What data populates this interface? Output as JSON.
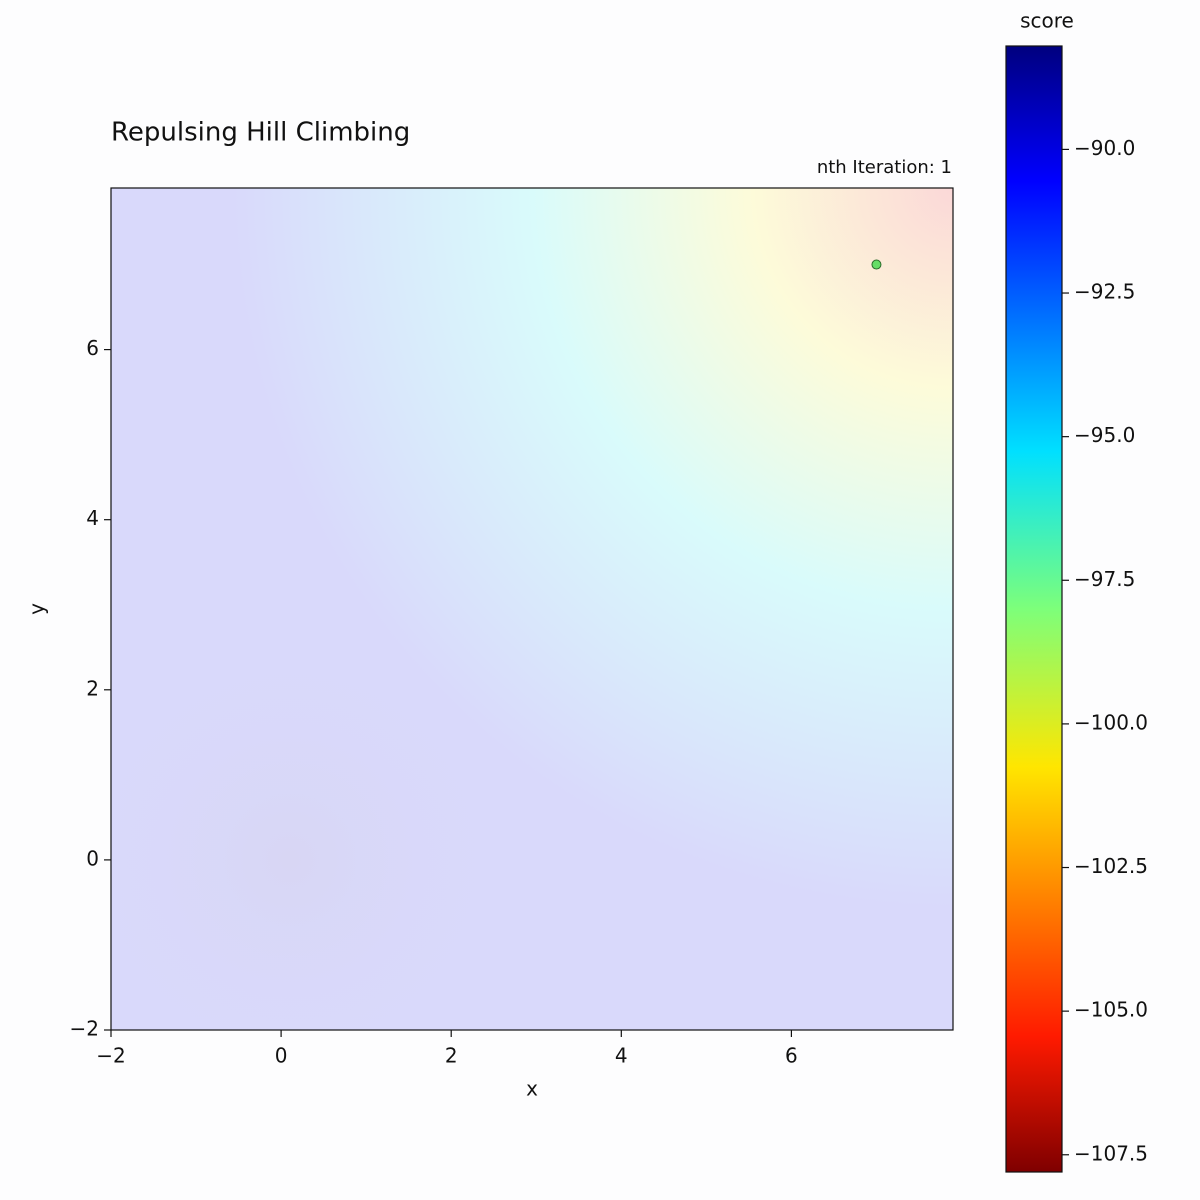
{
  "chart_data": {
    "type": "scatter",
    "title": "Repulsing Hill Climbing",
    "annotation": "nth Iteration: 1",
    "x_label": "x",
    "y_label": "y",
    "series": [
      {
        "x": [
          7
        ],
        "y": [
          7
        ],
        "color": "#66dd66"
      }
    ],
    "xlim": [
      -2,
      7.9
    ],
    "ylim": [
      -2,
      7.9
    ],
    "xticks": [
      {
        "value": -2,
        "label": "−2"
      },
      0,
      2,
      4,
      6
    ],
    "yticks": [
      {
        "value": -2,
        "label": "−2"
      },
      0,
      2,
      4,
      6
    ],
    "colorbar": {
      "label": "score",
      "colormap": "jet",
      "lim": [
        -107.8,
        -88.2
      ],
      "ticks": [
        {
          "value": -90,
          "label": "−90.0"
        },
        {
          "value": -92.5,
          "label": "−92.5"
        },
        {
          "value": -95,
          "label": "−95.0"
        },
        {
          "value": -97.5,
          "label": "−97.5"
        },
        {
          "value": -100,
          "label": "−100.0"
        },
        {
          "value": -102.5,
          "label": "−102.5"
        },
        {
          "value": -105,
          "label": "−105.0"
        },
        {
          "value": -107.5,
          "label": "−107.5"
        }
      ]
    }
  }
}
